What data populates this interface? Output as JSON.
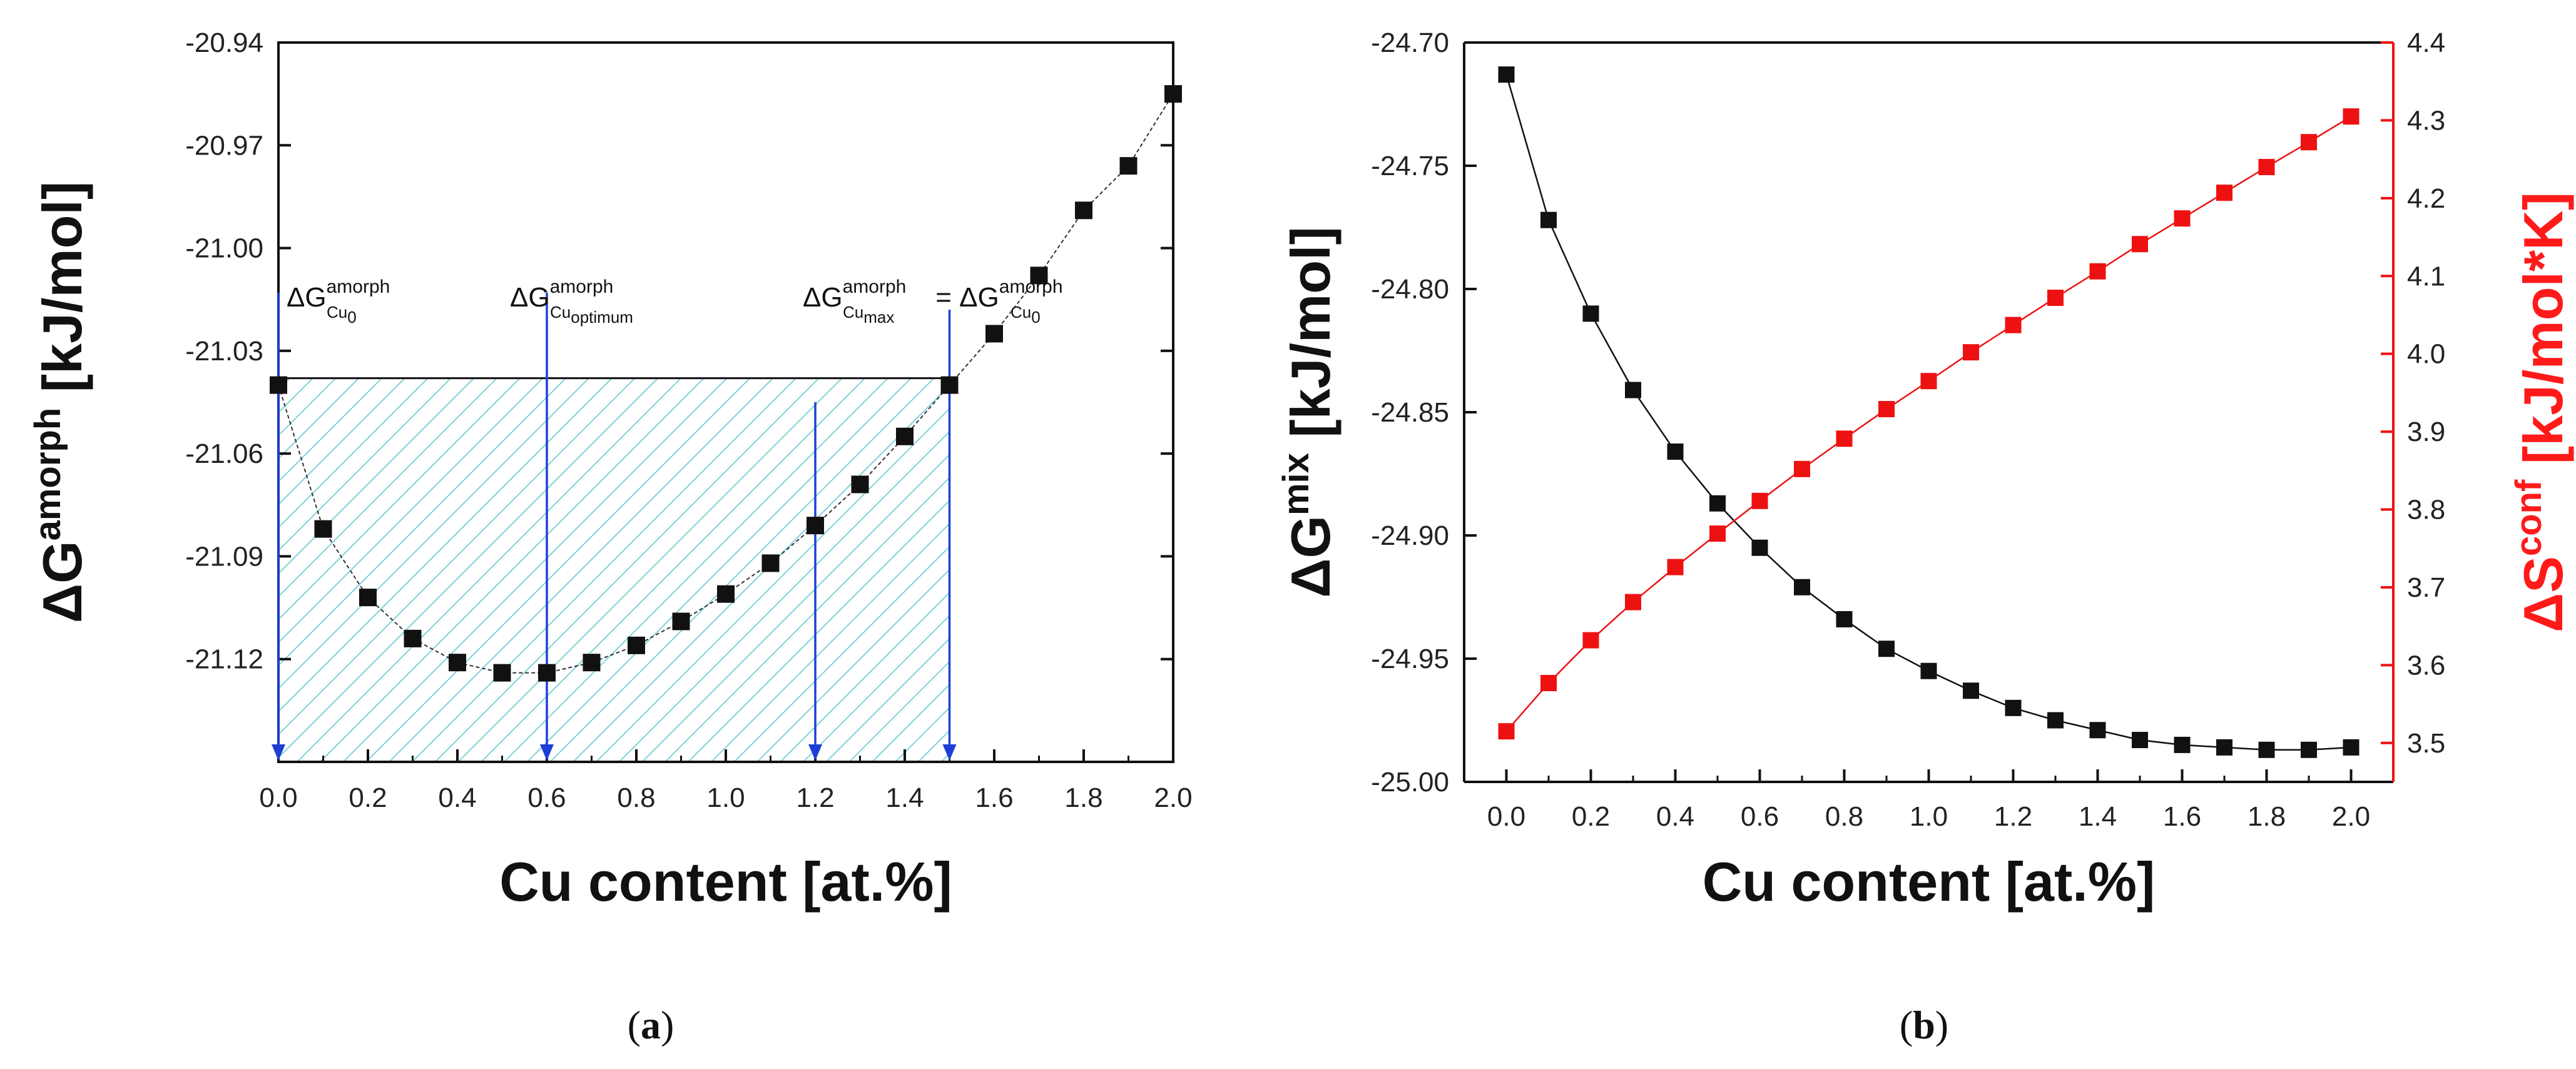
{
  "chart_data": [
    {
      "id": "a",
      "type": "line",
      "caption_open": "(",
      "caption_letter": "a",
      "caption_close": ")",
      "xlabel": "Cu content [at.%]",
      "ylabel_main": "ΔG",
      "ylabel_sup": "amorph",
      "ylabel_unit": " [kJ/mol]",
      "xlim": [
        0.0,
        2.0
      ],
      "ylim": [
        -21.15,
        -20.94
      ],
      "xticks": [
        "0.0",
        "0.2",
        "0.4",
        "0.6",
        "0.8",
        "1.0",
        "1.2",
        "1.4",
        "1.6",
        "1.8",
        "2.0"
      ],
      "yticks": [
        "-20.94",
        "-20.97",
        "-21.00",
        "-21.03",
        "-21.06",
        "-21.09",
        "-21.12"
      ],
      "series": [
        {
          "name": "ΔG amorph",
          "color": "#111111",
          "x": [
            0.0,
            0.1,
            0.2,
            0.3,
            0.4,
            0.5,
            0.6,
            0.7,
            0.8,
            0.9,
            1.0,
            1.1,
            1.2,
            1.3,
            1.4,
            1.5,
            1.6,
            1.7,
            1.8,
            1.9,
            2.0
          ],
          "y": [
            -21.04,
            -21.082,
            -21.102,
            -21.114,
            -21.121,
            -21.124,
            -21.124,
            -21.121,
            -21.116,
            -21.109,
            -21.101,
            -21.092,
            -21.081,
            -21.069,
            -21.055,
            -21.04,
            -21.025,
            -21.008,
            -20.989,
            -20.976,
            -20.955
          ]
        }
      ],
      "shaded_region": {
        "x": [
          0.0,
          1.5
        ],
        "y_top": -21.038,
        "fill": "#7fd3d8"
      },
      "vertical_lines_x": [
        0.0,
        0.6,
        1.2,
        1.5
      ],
      "line_color": "#1e3fd6",
      "annotations": [
        {
          "main": "ΔG",
          "sup": "amorph",
          "sub": "Cu",
          "subsub": "0"
        },
        {
          "main": "ΔG",
          "sup": "amorph",
          "sub": "Cu",
          "subsub": "optimum"
        },
        {
          "main": "ΔG",
          "sup": "amorph",
          "sub": "Cu",
          "subsub": "max",
          "eq": " = ",
          "main2": "ΔG",
          "sup2": "amorph",
          "sub2": "Cu",
          "subsub2": "0"
        }
      ]
    },
    {
      "id": "b",
      "type": "line",
      "caption_open": "(",
      "caption_letter": "b",
      "caption_close": ")",
      "xlabel": "Cu content [at.%]",
      "ylabel_main": "ΔG",
      "ylabel_sup": "mix",
      "ylabel_unit": " [kJ/mol]",
      "y2label_main": "ΔS",
      "y2label_sup": "conf",
      "y2label_unit": " [kJ/mol*K]",
      "xlim": [
        -0.1,
        2.1
      ],
      "ylim": [
        -25.0,
        -24.7
      ],
      "y2lim": [
        3.45,
        4.4
      ],
      "xticks": [
        "0.0",
        "0.2",
        "0.4",
        "0.6",
        "0.8",
        "1.0",
        "1.2",
        "1.4",
        "1.6",
        "1.8",
        "2.0"
      ],
      "yticks": [
        "-24.70",
        "-24.75",
        "-24.80",
        "-24.85",
        "-24.90",
        "-24.95",
        "-25.00"
      ],
      "y2ticks": [
        "3.5",
        "3.6",
        "3.7",
        "3.8",
        "3.9",
        "4.0",
        "4.1",
        "4.2",
        "4.3",
        "4.4"
      ],
      "series": [
        {
          "name": "ΔG mix",
          "color": "#111111",
          "axis": "left",
          "x": [
            0.0,
            0.1,
            0.2,
            0.3,
            0.4,
            0.5,
            0.6,
            0.7,
            0.8,
            0.9,
            1.0,
            1.1,
            1.2,
            1.3,
            1.4,
            1.5,
            1.6,
            1.7,
            1.8,
            1.9,
            2.0
          ],
          "y": [
            -24.713,
            -24.772,
            -24.81,
            -24.841,
            -24.866,
            -24.887,
            -24.905,
            -24.921,
            -24.934,
            -24.946,
            -24.955,
            -24.963,
            -24.97,
            -24.975,
            -24.979,
            -24.983,
            -24.985,
            -24.986,
            -24.987,
            -24.987,
            -24.986
          ]
        },
        {
          "name": "ΔS conf",
          "color": "#ee1111",
          "axis": "right",
          "x": [
            0.0,
            0.1,
            0.2,
            0.3,
            0.4,
            0.5,
            0.6,
            0.7,
            0.8,
            0.9,
            1.0,
            1.1,
            1.2,
            1.3,
            1.4,
            1.5,
            1.6,
            1.7,
            1.8,
            1.9,
            2.0
          ],
          "y": [
            3.515,
            3.577,
            3.632,
            3.681,
            3.726,
            3.769,
            3.811,
            3.852,
            3.891,
            3.929,
            3.965,
            4.002,
            4.037,
            4.072,
            4.106,
            4.141,
            4.174,
            4.207,
            4.24,
            4.272,
            4.305
          ]
        }
      ]
    }
  ]
}
